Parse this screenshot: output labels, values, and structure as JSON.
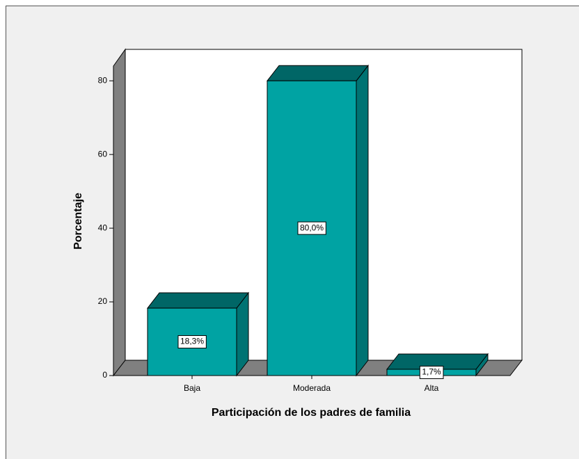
{
  "chart_data": {
    "type": "bar3d",
    "x_label": "Participación de los padres de familia",
    "y_label": "Porcentaje",
    "categories": [
      "Baja",
      "Moderada",
      "Alta"
    ],
    "values": [
      18.3,
      80.0,
      1.7
    ],
    "value_labels": [
      "18,3%",
      "80,0%",
      "1,7%"
    ],
    "color": "#00a3a3",
    "ylim": [
      0,
      84
    ],
    "yticks": [
      0,
      20,
      40,
      60,
      80
    ]
  }
}
